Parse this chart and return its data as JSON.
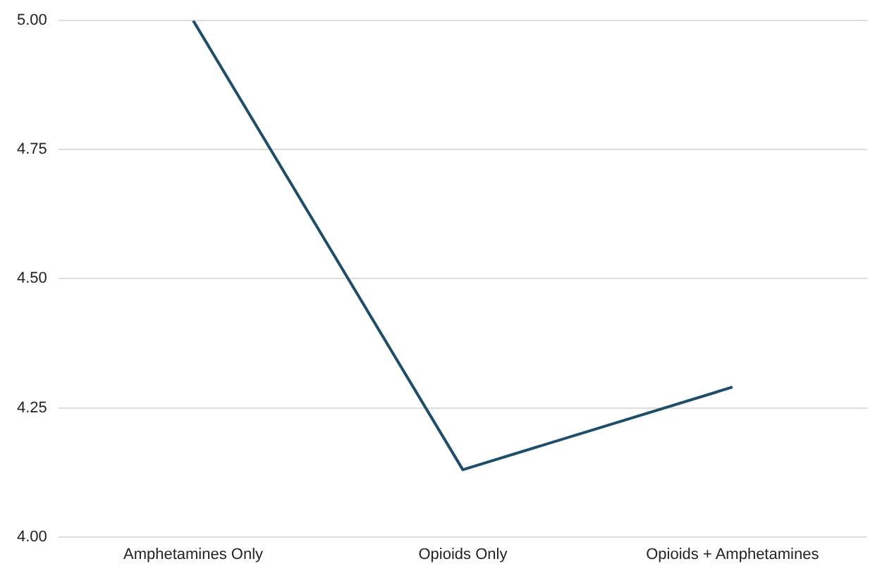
{
  "chart_data": {
    "type": "line",
    "categories": [
      "Amphetamines Only",
      "Opioids Only",
      "Opioids + Amphetamines"
    ],
    "series": [
      {
        "color": "#1f4e6b",
        "values": [
          5.0,
          4.13,
          4.29
        ]
      }
    ],
    "ylim": [
      4,
      5
    ],
    "yticks": [
      {
        "value": 4,
        "label": "4.00"
      },
      {
        "value": 4.25,
        "label": "4.25"
      },
      {
        "value": 4.5,
        "label": "4.50"
      },
      {
        "value": 4.75,
        "label": "4.75"
      },
      {
        "value": 5,
        "label": "5.00"
      }
    ],
    "grid": "y",
    "legend": false,
    "marker": "none",
    "line_style": "solid"
  }
}
